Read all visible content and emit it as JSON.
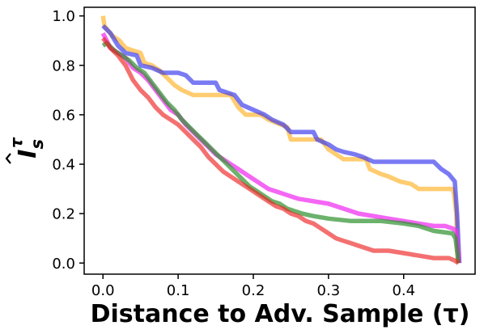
{
  "chart_data": {
    "type": "line",
    "xlabel": "Distance to Adv. Sample (τ)",
    "ylabel": "Î_s^τ",
    "xlim": [
      -0.025,
      0.495
    ],
    "ylim": [
      -0.045,
      1.035
    ],
    "x_ticks": [
      0.0,
      0.1,
      0.2,
      0.3,
      0.4
    ],
    "x_tick_labels": [
      "0.0",
      "0.1",
      "0.2",
      "0.3",
      "0.4"
    ],
    "y_ticks": [
      0.0,
      0.2,
      0.4,
      0.6,
      0.8,
      1.0
    ],
    "y_tick_labels": [
      "0.0",
      "0.2",
      "0.4",
      "0.6",
      "0.8",
      "1.0"
    ],
    "grid": false,
    "series": [
      {
        "color": "#ffb733",
        "opacity": 0.7,
        "points": [
          [
            0.0,
            1.0
          ],
          [
            0.002,
            0.96
          ],
          [
            0.012,
            0.92
          ],
          [
            0.022,
            0.9
          ],
          [
            0.03,
            0.87
          ],
          [
            0.04,
            0.86
          ],
          [
            0.05,
            0.85
          ],
          [
            0.055,
            0.81
          ],
          [
            0.065,
            0.8
          ],
          [
            0.075,
            0.78
          ],
          [
            0.085,
            0.75
          ],
          [
            0.095,
            0.72
          ],
          [
            0.105,
            0.7
          ],
          [
            0.12,
            0.68
          ],
          [
            0.17,
            0.68
          ],
          [
            0.18,
            0.63
          ],
          [
            0.19,
            0.6
          ],
          [
            0.21,
            0.6
          ],
          [
            0.22,
            0.58
          ],
          [
            0.245,
            0.55
          ],
          [
            0.25,
            0.5
          ],
          [
            0.29,
            0.5
          ],
          [
            0.3,
            0.46
          ],
          [
            0.31,
            0.44
          ],
          [
            0.32,
            0.42
          ],
          [
            0.35,
            0.42
          ],
          [
            0.355,
            0.38
          ],
          [
            0.37,
            0.36
          ],
          [
            0.38,
            0.35
          ],
          [
            0.395,
            0.33
          ],
          [
            0.41,
            0.32
          ],
          [
            0.42,
            0.3
          ],
          [
            0.465,
            0.3
          ],
          [
            0.467,
            0.28
          ],
          [
            0.47,
            0.2
          ],
          [
            0.472,
            0.0
          ]
        ]
      },
      {
        "color": "#3333ee",
        "opacity": 0.65,
        "points": [
          [
            0.0,
            0.96
          ],
          [
            0.01,
            0.93
          ],
          [
            0.02,
            0.88
          ],
          [
            0.03,
            0.85
          ],
          [
            0.045,
            0.84
          ],
          [
            0.05,
            0.8
          ],
          [
            0.065,
            0.79
          ],
          [
            0.08,
            0.77
          ],
          [
            0.1,
            0.77
          ],
          [
            0.11,
            0.76
          ],
          [
            0.12,
            0.73
          ],
          [
            0.15,
            0.73
          ],
          [
            0.155,
            0.7
          ],
          [
            0.175,
            0.68
          ],
          [
            0.185,
            0.64
          ],
          [
            0.2,
            0.62
          ],
          [
            0.215,
            0.6
          ],
          [
            0.225,
            0.58
          ],
          [
            0.24,
            0.56
          ],
          [
            0.25,
            0.53
          ],
          [
            0.28,
            0.53
          ],
          [
            0.285,
            0.5
          ],
          [
            0.3,
            0.48
          ],
          [
            0.31,
            0.46
          ],
          [
            0.32,
            0.45
          ],
          [
            0.335,
            0.44
          ],
          [
            0.345,
            0.43
          ],
          [
            0.36,
            0.41
          ],
          [
            0.44,
            0.41
          ],
          [
            0.45,
            0.38
          ],
          [
            0.46,
            0.36
          ],
          [
            0.468,
            0.33
          ],
          [
            0.471,
            0.2
          ],
          [
            0.474,
            0.0
          ]
        ]
      },
      {
        "color": "#f033f0",
        "opacity": 0.75,
        "points": [
          [
            0.0,
            0.93
          ],
          [
            0.01,
            0.87
          ],
          [
            0.02,
            0.85
          ],
          [
            0.03,
            0.83
          ],
          [
            0.04,
            0.79
          ],
          [
            0.05,
            0.77
          ],
          [
            0.06,
            0.74
          ],
          [
            0.07,
            0.7
          ],
          [
            0.08,
            0.66
          ],
          [
            0.09,
            0.62
          ],
          [
            0.1,
            0.6
          ],
          [
            0.11,
            0.56
          ],
          [
            0.12,
            0.53
          ],
          [
            0.13,
            0.5
          ],
          [
            0.14,
            0.47
          ],
          [
            0.15,
            0.44
          ],
          [
            0.16,
            0.42
          ],
          [
            0.17,
            0.4
          ],
          [
            0.18,
            0.38
          ],
          [
            0.19,
            0.36
          ],
          [
            0.2,
            0.34
          ],
          [
            0.21,
            0.32
          ],
          [
            0.22,
            0.3
          ],
          [
            0.23,
            0.29
          ],
          [
            0.24,
            0.28
          ],
          [
            0.25,
            0.27
          ],
          [
            0.26,
            0.26
          ],
          [
            0.28,
            0.25
          ],
          [
            0.3,
            0.24
          ],
          [
            0.32,
            0.22
          ],
          [
            0.34,
            0.2
          ],
          [
            0.36,
            0.19
          ],
          [
            0.38,
            0.18
          ],
          [
            0.4,
            0.17
          ],
          [
            0.42,
            0.16
          ],
          [
            0.44,
            0.15
          ],
          [
            0.455,
            0.15
          ],
          [
            0.465,
            0.14
          ],
          [
            0.47,
            0.13
          ],
          [
            0.474,
            0.0
          ]
        ]
      },
      {
        "color": "#2e922e",
        "opacity": 0.7,
        "points": [
          [
            0.0,
            0.88
          ],
          [
            0.005,
            0.89
          ],
          [
            0.015,
            0.86
          ],
          [
            0.025,
            0.84
          ],
          [
            0.035,
            0.82
          ],
          [
            0.045,
            0.79
          ],
          [
            0.055,
            0.77
          ],
          [
            0.065,
            0.73
          ],
          [
            0.075,
            0.69
          ],
          [
            0.085,
            0.65
          ],
          [
            0.095,
            0.62
          ],
          [
            0.105,
            0.58
          ],
          [
            0.115,
            0.55
          ],
          [
            0.125,
            0.52
          ],
          [
            0.135,
            0.49
          ],
          [
            0.145,
            0.46
          ],
          [
            0.155,
            0.43
          ],
          [
            0.165,
            0.4
          ],
          [
            0.175,
            0.37
          ],
          [
            0.185,
            0.34
          ],
          [
            0.195,
            0.31
          ],
          [
            0.205,
            0.29
          ],
          [
            0.215,
            0.27
          ],
          [
            0.225,
            0.25
          ],
          [
            0.235,
            0.24
          ],
          [
            0.245,
            0.22
          ],
          [
            0.255,
            0.21
          ],
          [
            0.265,
            0.2
          ],
          [
            0.28,
            0.19
          ],
          [
            0.3,
            0.18
          ],
          [
            0.33,
            0.17
          ],
          [
            0.37,
            0.17
          ],
          [
            0.4,
            0.16
          ],
          [
            0.42,
            0.15
          ],
          [
            0.44,
            0.13
          ],
          [
            0.465,
            0.12
          ],
          [
            0.469,
            0.1
          ],
          [
            0.473,
            0.0
          ]
        ]
      },
      {
        "color": "#ee2424",
        "opacity": 0.65,
        "points": [
          [
            0.0,
            0.91
          ],
          [
            0.01,
            0.87
          ],
          [
            0.02,
            0.84
          ],
          [
            0.03,
            0.8
          ],
          [
            0.04,
            0.74
          ],
          [
            0.05,
            0.7
          ],
          [
            0.06,
            0.67
          ],
          [
            0.07,
            0.63
          ],
          [
            0.08,
            0.6
          ],
          [
            0.09,
            0.58
          ],
          [
            0.1,
            0.56
          ],
          [
            0.11,
            0.53
          ],
          [
            0.12,
            0.5
          ],
          [
            0.13,
            0.47
          ],
          [
            0.14,
            0.43
          ],
          [
            0.15,
            0.4
          ],
          [
            0.16,
            0.37
          ],
          [
            0.17,
            0.35
          ],
          [
            0.18,
            0.33
          ],
          [
            0.19,
            0.31
          ],
          [
            0.2,
            0.29
          ],
          [
            0.21,
            0.27
          ],
          [
            0.22,
            0.25
          ],
          [
            0.23,
            0.23
          ],
          [
            0.24,
            0.22
          ],
          [
            0.25,
            0.2
          ],
          [
            0.26,
            0.19
          ],
          [
            0.27,
            0.17
          ],
          [
            0.28,
            0.16
          ],
          [
            0.29,
            0.14
          ],
          [
            0.3,
            0.12
          ],
          [
            0.31,
            0.1
          ],
          [
            0.32,
            0.09
          ],
          [
            0.33,
            0.08
          ],
          [
            0.34,
            0.07
          ],
          [
            0.36,
            0.05
          ],
          [
            0.38,
            0.05
          ],
          [
            0.4,
            0.04
          ],
          [
            0.42,
            0.03
          ],
          [
            0.44,
            0.02
          ],
          [
            0.46,
            0.02
          ],
          [
            0.468,
            0.01
          ],
          [
            0.473,
            0.0
          ]
        ]
      }
    ]
  }
}
